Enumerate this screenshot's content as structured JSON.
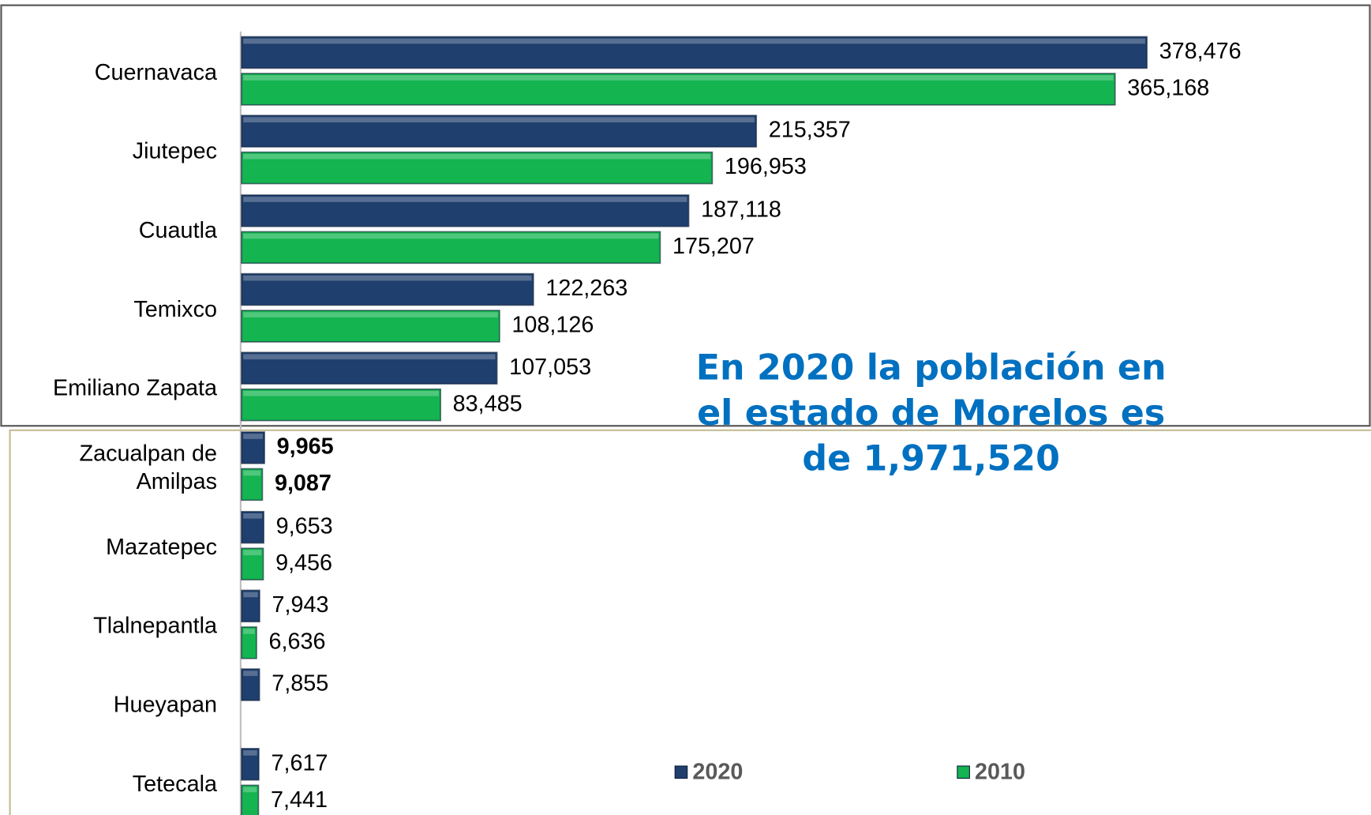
{
  "chart_data": {
    "type": "bar",
    "orientation": "horizontal",
    "categories": [
      "Cuernavaca",
      "Jiutepec",
      "Cuautla",
      "Temixco",
      "Emiliano Zapata",
      "Zacualpan de Amilpas",
      "Mazatepec",
      "Tlalnepantla",
      "Hueyapan",
      "Tetecala"
    ],
    "series": [
      {
        "name": "2020",
        "color": "#1f3f6e",
        "values": [
          378476,
          215357,
          187118,
          122263,
          107053,
          9965,
          9653,
          7943,
          7855,
          7617
        ],
        "value_labels": [
          "378,476",
          "215,357",
          "187,118",
          "122,263",
          "107,053",
          "9,965",
          "9,653",
          "7,943",
          "7,855",
          "7,617"
        ]
      },
      {
        "name": "2010",
        "color": "#14b450",
        "values": [
          365168,
          196953,
          175207,
          108126,
          83485,
          9087,
          9456,
          6636,
          null,
          7441
        ],
        "value_labels": [
          "365,168",
          "196,953",
          "175,207",
          "108,126",
          "83,485",
          "9,087",
          "9,456",
          "6,636",
          null,
          "7,441"
        ]
      }
    ],
    "annotation": "En 2020 la población en el estado de Morelos es de 1,971,520",
    "legend": "bottom"
  }
}
